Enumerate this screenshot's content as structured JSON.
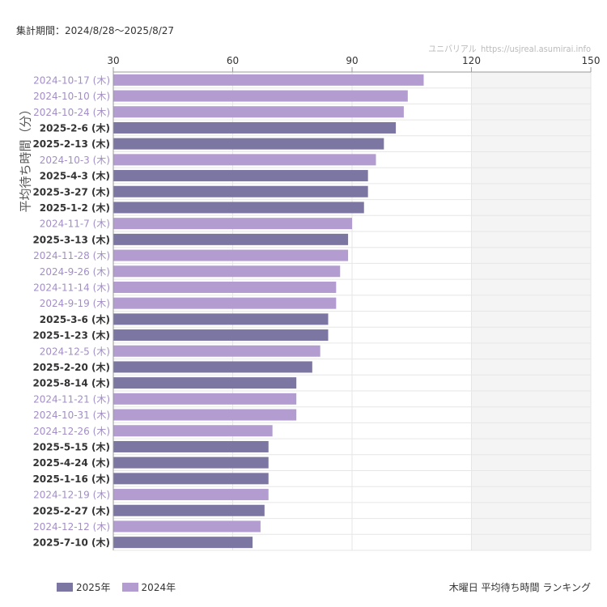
{
  "header": {
    "period": "集計期間：2024/8/28〜2025/8/27",
    "source_name": "ユニバリアル",
    "source_url": "https://usjreal.asumirai.info"
  },
  "footer": {
    "title": "木曜日 平均待ち時間 ランキング"
  },
  "colors": {
    "2025年": "#7c76a3",
    "2024年": "#b39dd0",
    "label_2024": "#a38ec7",
    "label_2025": "#333333",
    "shade": "#f4f4f4",
    "grid": "#e6e6e6",
    "axis": "#999999"
  },
  "chart_data": {
    "type": "bar",
    "orientation": "horizontal",
    "ylabel": "平均待ち時間（分）",
    "xlim": [
      30,
      150
    ],
    "xticks": [
      30,
      60,
      90,
      120,
      150
    ],
    "shaded_range": [
      120,
      150
    ],
    "grid": true,
    "legend_position": "bottom-left",
    "legend": [
      "2025年",
      "2024年"
    ],
    "categories": [
      "2024-10-17 (木)",
      "2024-10-10 (木)",
      "2024-10-24 (木)",
      "2025-2-6 (木)",
      "2025-2-13 (木)",
      "2024-10-3 (木)",
      "2025-4-3 (木)",
      "2025-3-27 (木)",
      "2025-1-2 (木)",
      "2024-11-7 (木)",
      "2025-3-13 (木)",
      "2024-11-28 (木)",
      "2024-9-26 (木)",
      "2024-11-14 (木)",
      "2024-9-19 (木)",
      "2025-3-6 (木)",
      "2025-1-23 (木)",
      "2024-12-5 (木)",
      "2025-2-20 (木)",
      "2025-8-14 (木)",
      "2024-11-21 (木)",
      "2024-10-31 (木)",
      "2024-12-26 (木)",
      "2025-5-15 (木)",
      "2025-4-24 (木)",
      "2025-1-16 (木)",
      "2024-12-19 (木)",
      "2025-2-27 (木)",
      "2024-12-12 (木)",
      "2025-7-10 (木)"
    ],
    "values": [
      108,
      104,
      103,
      101,
      98,
      96,
      94,
      94,
      93,
      90,
      89,
      89,
      87,
      86,
      86,
      84,
      84,
      82,
      80,
      76,
      76,
      76,
      70,
      69,
      69,
      69,
      69,
      68,
      67,
      65
    ],
    "series_of": [
      "2024年",
      "2024年",
      "2024年",
      "2025年",
      "2025年",
      "2024年",
      "2025年",
      "2025年",
      "2025年",
      "2024年",
      "2025年",
      "2024年",
      "2024年",
      "2024年",
      "2024年",
      "2025年",
      "2025年",
      "2024年",
      "2025年",
      "2025年",
      "2024年",
      "2024年",
      "2024年",
      "2025年",
      "2025年",
      "2025年",
      "2024年",
      "2025年",
      "2024年",
      "2025年"
    ]
  }
}
